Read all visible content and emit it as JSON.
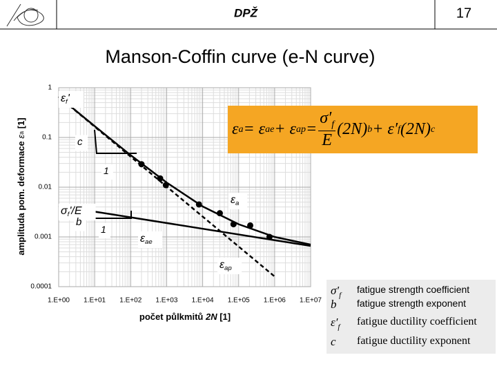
{
  "header": {
    "center": "DPŽ",
    "page": "17"
  },
  "title": "Manson-Coffin curve (e-N curve)",
  "chart_data": {
    "type": "line",
    "xlabel": {
      "text": "počet půlkmitů ",
      "var": "2N",
      "unit": " [1]"
    },
    "ylabel": {
      "text": "amplituda pom. deformace ",
      "var": "ε",
      "sub": "a",
      "unit": " [1]"
    },
    "log_x": true,
    "log_y": true,
    "grid": true,
    "xlim": [
      1,
      10000000
    ],
    "ylim": [
      0.0001,
      1
    ],
    "xticks": [
      {
        "value": 1,
        "label": "1.E+00"
      },
      {
        "value": 10,
        "label": "1.E+01"
      },
      {
        "value": 100,
        "label": "1.E+02"
      },
      {
        "value": 1000,
        "label": "1.E+03"
      },
      {
        "value": 10000,
        "label": "1.E+04"
      },
      {
        "value": 100000,
        "label": "1.E+05"
      },
      {
        "value": 1000000,
        "label": "1.E+06"
      },
      {
        "value": 10000000,
        "label": "1.E+07"
      }
    ],
    "yticks": [
      0.0001,
      0.001,
      0.01,
      0.1,
      1
    ],
    "series": [
      {
        "color": "#000000",
        "dash": false,
        "x": [
          1,
          10000000
        ],
        "values": [
          0.0042,
          0.00066
        ]
      },
      {
        "color": "#000000",
        "dash": true,
        "x": [
          1,
          1000000
        ],
        "values": [
          0.66,
          0.00016
        ]
      },
      {
        "color": "#000000",
        "dash": false,
        "x": [
          1,
          10,
          100,
          1000,
          10000,
          100000,
          1000000,
          10000000
        ],
        "values": [
          0.664,
          0.169,
          0.044,
          0.0124,
          0.0041,
          0.0018,
          0.001,
          0.0007
        ]
      },
      {
        "color": "#000000",
        "markers": true,
        "x": [
          200,
          660,
          950,
          7900,
          30000,
          72000,
          210000,
          720000
        ],
        "values": [
          0.029,
          0.015,
          0.011,
          0.0045,
          0.003,
          0.0018,
          0.0017,
          0.001
        ]
      }
    ],
    "annotations": [
      {
        "text": "ε",
        "sub": "f",
        "suffix": "'"
      },
      {
        "text": "c"
      },
      {
        "text": "1"
      },
      {
        "text": "σ",
        "sub": "f",
        "suffix": "'/E"
      },
      {
        "text": "b"
      },
      {
        "text": "1"
      },
      {
        "text": "ε",
        "sub": "a"
      },
      {
        "text": "ε",
        "sub": "ae"
      },
      {
        "text": "ε",
        "sub": "ap"
      }
    ]
  },
  "formula": {
    "tokens": [
      {
        "t": "ε"
      },
      {
        "sub": "a"
      },
      {
        "t": " = ε"
      },
      {
        "sub": "ae"
      },
      {
        "t": " + ε"
      },
      {
        "sub": "ap"
      },
      {
        "t": " = "
      },
      {
        "frac": [
          "σ′",
          "f",
          "E"
        ]
      },
      {
        "t": "(2N)"
      },
      {
        "sup": "b"
      },
      {
        "t": " + ε′"
      },
      {
        "sub": "f"
      },
      {
        "t": "(2N)"
      },
      {
        "sup": "c"
      }
    ]
  },
  "legend": [
    {
      "symbol": "σ′",
      "sub": "f",
      "text": "fatigue strength coefficient"
    },
    {
      "symbol": "b",
      "text": "fatigue strength exponent"
    },
    {
      "symbol": "ε′",
      "sub": "f",
      "text": "fatigue ductility coefficient"
    },
    {
      "symbol": "c",
      "text": "fatigue ductility exponent"
    }
  ]
}
